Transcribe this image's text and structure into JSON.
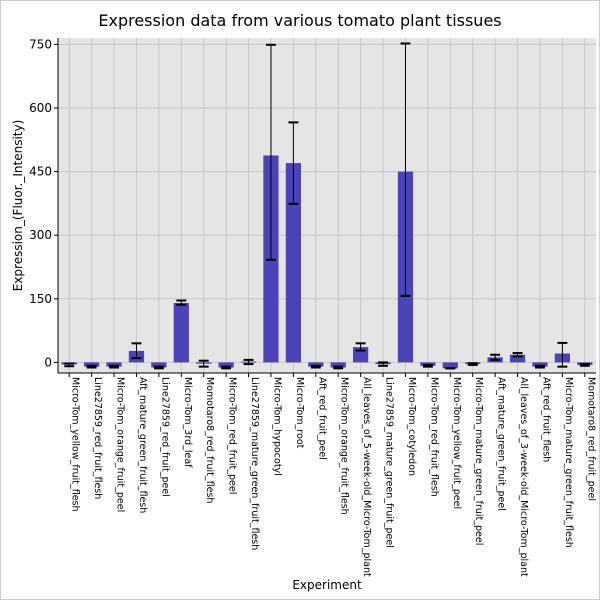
{
  "chart_data": {
    "type": "bar",
    "title": "Expression data from various tomato plant tissues",
    "xlabel": "Experiment",
    "ylabel": "Expression_(Fluor._Intensity)",
    "ylim": [
      -25,
      765
    ],
    "yticks": [
      0,
      150,
      300,
      450,
      600,
      750
    ],
    "grid": true,
    "bar_color": "#4b44b8",
    "error_color": "#000000",
    "background_color": "#e5e5e5",
    "categories": [
      "Micro-Tom_yellow_fruit_flesh",
      "Line27859_red_fruit_flesh",
      "Micro-Tom_orange_fruit_peel",
      "Aft_mature_green_fruit_flesh",
      "Line27859_red_fruit_peel",
      "Micro-Tom_3rd_leaf",
      "Momotaro8_red_fruit_flesh",
      "Micro-Tom_red_fruit_peel",
      "Line27859_mature_green_fruit_flesh",
      "Micro-Tom_hypocotyl",
      "Micro-Tom_root",
      "Aft_red_fruit_peel",
      "Micro-Tom_orange_fruit_flesh",
      "All_leaves_of_5-week-old_Micro-Tom_plant",
      "Line27859_mature_green_fruit_peel",
      "Micro-Tom_cotyledon",
      "Micro-Tom_red_fruit_flesh",
      "Micro-Tom_yellow_fruit_peel",
      "Micro-Tom_mature_green_fruit_peel",
      "Aft_mature_green_fruit_peel",
      "All_leaves_of_3-week-old_Micro-Tom_plant",
      "Aft_red_fruit_flesh",
      "Micro-Tom_mature_green_fruit_flesh",
      "Momotaro8_red_fruit_peel"
    ],
    "values": [
      -5,
      -10,
      -10,
      27,
      -12,
      140,
      -3,
      -12,
      2,
      488,
      470,
      -10,
      -12,
      36,
      -4,
      450,
      -8,
      -14,
      -4,
      12,
      18,
      -10,
      21,
      -6
    ],
    "error_low": [
      -9,
      -12,
      -12,
      10,
      -14,
      136,
      -10,
      -14,
      -4,
      242,
      374,
      -12,
      -14,
      28,
      -8,
      157,
      -10,
      -14,
      -6,
      6,
      14,
      -12,
      -10,
      -8
    ],
    "error_high": [
      -3,
      -8,
      -8,
      45,
      -10,
      146,
      4,
      -10,
      6,
      749,
      566,
      -8,
      -10,
      45,
      0,
      752,
      -6,
      -14,
      -2,
      18,
      22,
      -8,
      46,
      -4
    ]
  }
}
